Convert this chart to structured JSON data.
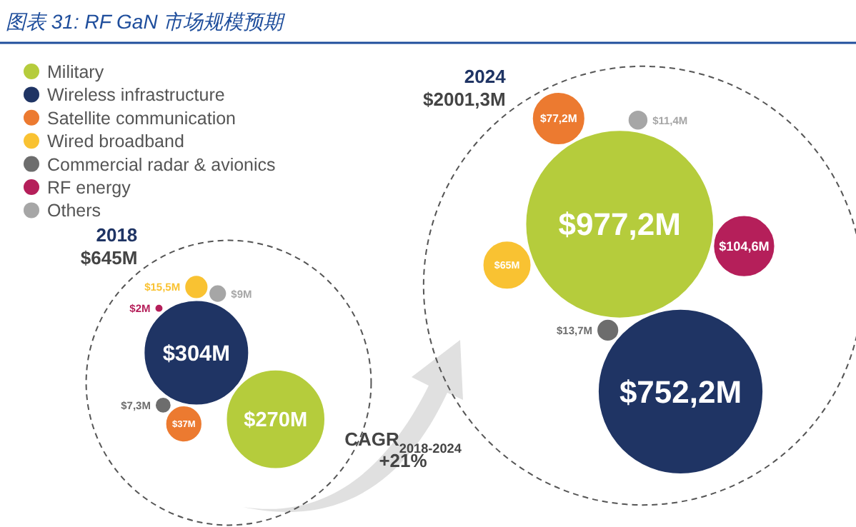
{
  "chart_data": {
    "type": "other",
    "title": "图表 31: RF GaN 市场规模预期",
    "categories": [
      "2018",
      "2024"
    ],
    "totals": [
      "$645M",
      "$2001,3M"
    ],
    "series": [
      {
        "name": "Military",
        "color": "#b5cc3c",
        "values": [
          270,
          977.2
        ],
        "value_labels": [
          "$270M",
          "$977,2M"
        ]
      },
      {
        "name": "Wireless infrastructure",
        "color": "#1f3464",
        "values": [
          304,
          752.2
        ],
        "value_labels": [
          "$304M",
          "$752,2M"
        ]
      },
      {
        "name": "Satellite communication",
        "color": "#ec7a30",
        "values": [
          37,
          77.2
        ],
        "value_labels": [
          "$37M",
          "$77,2M"
        ]
      },
      {
        "name": "Wired broadband",
        "color": "#f9c232",
        "values": [
          15.5,
          65
        ],
        "value_labels": [
          "$15,5M",
          "$65M"
        ]
      },
      {
        "name": "Commercial radar & avionics",
        "color": "#6d6d6d",
        "values": [
          7.3,
          13.7
        ],
        "value_labels": [
          "$7,3M",
          "$13,7M"
        ]
      },
      {
        "name": "RF energy",
        "color": "#b51f5a",
        "values": [
          2,
          104.6
        ],
        "value_labels": [
          "$2M",
          "$104,6M"
        ]
      },
      {
        "name": "Others",
        "color": "#a6a6a6",
        "values": [
          9,
          11.4
        ],
        "value_labels": [
          "$9M",
          "$11,4M"
        ]
      }
    ],
    "annotations": [
      "CAGR$_{2018-2024}$",
      "+21%"
    ],
    "legend": "top left"
  }
}
